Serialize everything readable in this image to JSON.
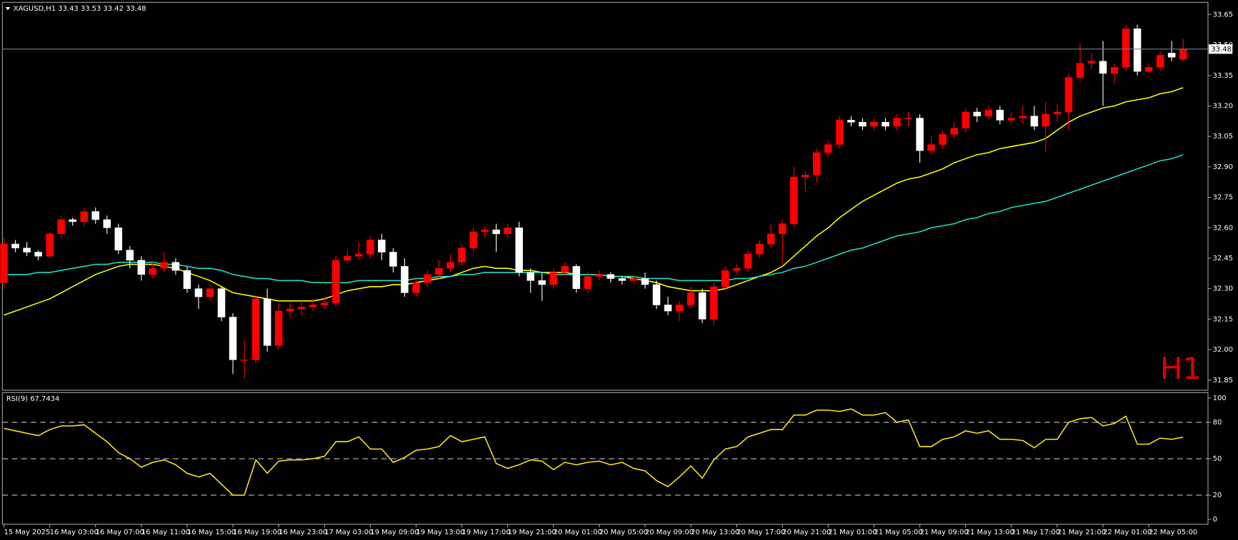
{
  "chart_data": [
    {
      "type": "candlestick",
      "title": "XAGUSD,H1  33.43 33.53 33.42 33.48",
      "annotation": "H1",
      "categories": [
        "15 May 2025",
        null,
        null,
        null,
        "16 May 03:00",
        null,
        null,
        null,
        "16 May 07:00",
        null,
        null,
        null,
        "16 May 11:00",
        null,
        null,
        null,
        "16 May 15:00",
        null,
        null,
        null,
        "16 May 19:00",
        null,
        null,
        null,
        "16 May 23:00",
        null,
        null,
        null,
        "17 May 03:00",
        null,
        null,
        null,
        "19 May 09:00",
        null,
        null,
        null,
        "19 May 13:00",
        null,
        null,
        null,
        "19 May 17:00",
        null,
        null,
        null,
        "19 May 21:00",
        null,
        null,
        null,
        "20 May 01:00",
        null,
        null,
        null,
        "20 May 05:00",
        null,
        null,
        null,
        "20 May 09:00",
        null,
        null,
        null,
        "20 May 13:00",
        null,
        null,
        null,
        "20 May 17:00",
        null,
        null,
        null,
        "20 May 21:00",
        null,
        null,
        null,
        "21 May 01:00",
        null,
        null,
        null,
        "21 May 05:00",
        null,
        null,
        null,
        "21 May 09:00",
        null,
        null,
        null,
        "21 May 13:00",
        null,
        null,
        null,
        "21 May 17:00",
        null,
        null,
        null,
        "21 May 21:00",
        null,
        null,
        null,
        "22 May 01:00",
        null,
        null,
        null,
        "22 May 05:00",
        null,
        null,
        null
      ],
      "open": [
        32.33,
        32.52,
        32.5,
        32.48,
        32.46,
        32.57,
        32.64,
        32.63,
        32.68,
        32.64,
        32.6,
        32.49,
        32.44,
        32.37,
        32.4,
        32.43,
        32.39,
        32.3,
        32.26,
        32.3,
        32.16,
        31.95,
        31.95,
        32.25,
        32.02,
        32.19,
        32.2,
        32.21,
        32.22,
        32.23,
        32.44,
        32.46,
        32.47,
        32.54,
        32.48,
        32.41,
        32.28,
        32.33,
        32.37,
        32.4,
        32.43,
        32.5,
        32.58,
        32.59,
        32.57,
        32.6,
        32.38,
        32.34,
        32.32,
        32.38,
        32.41,
        32.3,
        32.36,
        32.37,
        32.35,
        32.34,
        32.35,
        32.32,
        32.22,
        32.19,
        32.22,
        32.28,
        32.15,
        32.31,
        32.39,
        32.4,
        32.47,
        32.52,
        32.57,
        32.62,
        32.85,
        32.86,
        32.97,
        33.01,
        33.13,
        33.12,
        33.1,
        33.12,
        33.1,
        33.14,
        33.14,
        32.98,
        33.01,
        33.06,
        33.09,
        33.17,
        33.15,
        33.18,
        33.13,
        33.14,
        33.15,
        33.1,
        33.16,
        33.17,
        33.34,
        33.41,
        33.42,
        33.36,
        33.39,
        33.58,
        33.37,
        33.39,
        33.46,
        33.43
      ],
      "high": [
        32.55,
        32.54,
        32.53,
        32.49,
        32.58,
        32.66,
        32.65,
        32.7,
        32.7,
        32.66,
        32.62,
        32.51,
        32.46,
        32.44,
        32.48,
        32.45,
        32.41,
        32.32,
        32.32,
        32.31,
        32.18,
        32.05,
        32.27,
        32.3,
        32.23,
        32.23,
        32.24,
        32.25,
        32.26,
        32.46,
        32.49,
        32.53,
        32.56,
        32.57,
        32.5,
        32.45,
        32.35,
        32.39,
        32.44,
        32.47,
        32.52,
        32.6,
        32.61,
        32.62,
        32.62,
        32.63,
        32.4,
        32.38,
        32.4,
        32.43,
        32.42,
        32.38,
        32.39,
        32.38,
        32.36,
        32.37,
        32.38,
        32.34,
        32.26,
        32.24,
        32.31,
        32.3,
        32.33,
        32.41,
        32.42,
        32.49,
        32.54,
        32.62,
        32.64,
        32.9,
        32.88,
        32.99,
        33.03,
        33.15,
        33.15,
        33.14,
        33.14,
        33.14,
        33.16,
        33.17,
        33.16,
        33.05,
        33.08,
        33.12,
        33.19,
        33.19,
        33.2,
        33.2,
        33.17,
        33.2,
        33.2,
        33.22,
        33.21,
        33.36,
        33.51,
        33.46,
        33.52,
        33.41,
        33.6,
        33.6,
        33.41,
        33.47,
        33.52,
        33.53
      ],
      "low": [
        32.3,
        32.48,
        32.46,
        32.44,
        32.45,
        32.55,
        32.61,
        32.61,
        32.62,
        32.57,
        32.47,
        32.4,
        32.34,
        32.35,
        32.38,
        32.37,
        32.28,
        32.2,
        32.24,
        32.14,
        31.88,
        31.86,
        31.93,
        31.99,
        32.0,
        32.16,
        32.17,
        32.19,
        32.2,
        32.21,
        32.42,
        32.44,
        32.45,
        32.44,
        32.38,
        32.26,
        32.26,
        32.31,
        32.35,
        32.38,
        32.41,
        32.48,
        32.55,
        32.48,
        32.55,
        32.36,
        32.28,
        32.24,
        32.3,
        32.36,
        32.28,
        32.28,
        32.34,
        32.33,
        32.32,
        32.32,
        32.3,
        32.2,
        32.17,
        32.14,
        32.2,
        32.13,
        32.12,
        32.29,
        32.37,
        32.38,
        32.45,
        32.5,
        32.42,
        32.6,
        32.78,
        32.82,
        32.95,
        32.99,
        33.1,
        33.08,
        33.08,
        33.08,
        33.08,
        33.1,
        32.92,
        32.96,
        32.99,
        33.04,
        33.07,
        33.12,
        33.13,
        33.11,
        33.11,
        33.11,
        33.08,
        32.97,
        33.12,
        33.08,
        33.32,
        33.38,
        33.2,
        33.31,
        33.37,
        33.35,
        33.36,
        33.37,
        33.42,
        33.42
      ],
      "close": [
        32.52,
        32.5,
        32.48,
        32.46,
        32.57,
        32.64,
        32.63,
        32.68,
        32.64,
        32.6,
        32.49,
        32.44,
        32.37,
        32.4,
        32.43,
        32.39,
        32.3,
        32.26,
        32.3,
        32.16,
        31.95,
        31.95,
        32.25,
        32.02,
        32.19,
        32.2,
        32.21,
        32.22,
        32.23,
        32.44,
        32.46,
        32.47,
        32.54,
        32.48,
        32.41,
        32.28,
        32.33,
        32.37,
        32.4,
        32.43,
        32.5,
        32.58,
        32.59,
        32.57,
        32.6,
        32.38,
        32.34,
        32.32,
        32.38,
        32.41,
        32.3,
        32.36,
        32.37,
        32.35,
        32.34,
        32.35,
        32.32,
        32.22,
        32.19,
        32.22,
        32.28,
        32.15,
        32.31,
        32.39,
        32.4,
        32.47,
        32.52,
        32.57,
        32.62,
        32.85,
        32.86,
        32.97,
        33.01,
        33.13,
        33.12,
        33.1,
        33.12,
        33.1,
        33.14,
        33.14,
        32.98,
        33.01,
        33.06,
        33.09,
        33.17,
        33.15,
        33.18,
        33.13,
        33.14,
        33.15,
        33.1,
        33.16,
        33.17,
        33.34,
        33.41,
        33.42,
        33.36,
        33.39,
        33.58,
        33.37,
        33.39,
        33.45,
        33.44,
        33.48
      ],
      "up_color": "#ff0000",
      "down_color": "#ffffff",
      "series": [
        {
          "color": "#ffff00",
          "values": [
            32.17,
            32.19,
            32.21,
            32.23,
            32.25,
            32.28,
            32.31,
            32.34,
            32.37,
            32.39,
            32.41,
            32.42,
            32.42,
            32.42,
            32.41,
            32.4,
            32.38,
            32.36,
            32.34,
            32.31,
            32.28,
            32.27,
            32.26,
            32.25,
            32.24,
            32.24,
            32.24,
            32.24,
            32.25,
            32.27,
            32.29,
            32.3,
            32.31,
            32.31,
            32.32,
            32.32,
            32.33,
            32.34,
            32.35,
            32.36,
            32.38,
            32.4,
            32.41,
            32.4,
            32.4,
            32.39,
            32.39,
            32.38,
            32.38,
            32.38,
            32.37,
            32.37,
            32.37,
            32.36,
            32.36,
            32.35,
            32.34,
            32.33,
            32.31,
            32.3,
            32.29,
            32.29,
            32.29,
            32.3,
            32.32,
            32.34,
            32.36,
            32.38,
            32.41,
            32.46,
            32.51,
            32.56,
            32.6,
            32.65,
            32.69,
            32.73,
            32.76,
            32.79,
            32.82,
            32.84,
            32.85,
            32.87,
            32.89,
            32.92,
            32.94,
            32.96,
            32.97,
            32.99,
            33.0,
            33.01,
            33.02,
            33.04,
            33.08,
            33.12,
            33.15,
            33.17,
            33.19,
            33.2,
            33.22,
            33.23,
            33.24,
            33.26,
            33.27,
            33.29
          ]
        },
        {
          "color": "#20e0c0",
          "values": [
            32.37,
            32.37,
            32.37,
            32.38,
            32.38,
            32.39,
            32.4,
            32.41,
            32.42,
            32.42,
            32.43,
            32.43,
            32.43,
            32.43,
            32.42,
            32.42,
            32.41,
            32.4,
            32.4,
            32.39,
            32.37,
            32.36,
            32.35,
            32.35,
            32.34,
            32.34,
            32.34,
            32.33,
            32.33,
            32.33,
            32.33,
            32.34,
            32.34,
            32.34,
            32.34,
            32.34,
            32.35,
            32.35,
            32.36,
            32.36,
            32.37,
            32.37,
            32.38,
            32.38,
            32.38,
            32.38,
            32.38,
            32.38,
            32.37,
            32.37,
            32.37,
            32.37,
            32.37,
            32.36,
            32.36,
            32.36,
            32.35,
            32.35,
            32.35,
            32.34,
            32.34,
            32.34,
            32.34,
            32.34,
            32.35,
            32.35,
            32.36,
            32.37,
            32.38,
            32.4,
            32.41,
            32.43,
            32.45,
            32.47,
            32.49,
            32.5,
            32.52,
            32.54,
            32.56,
            32.57,
            32.58,
            32.6,
            32.61,
            32.62,
            32.64,
            32.65,
            32.67,
            32.68,
            32.7,
            32.71,
            32.72,
            32.73,
            32.75,
            32.77,
            32.79,
            32.81,
            32.83,
            32.85,
            32.87,
            32.89,
            32.91,
            32.93,
            32.94,
            32.96
          ]
        }
      ],
      "current_price": 33.48,
      "ylim": [
        31.8,
        33.71
      ],
      "yticks": [
        31.85,
        {
          "value": 32,
          "label": "32.00"
        },
        32.15,
        {
          "value": 32.3,
          "label": "32.30"
        },
        32.45,
        {
          "value": 32.6,
          "label": "32.60"
        },
        32.75,
        {
          "value": 32.9,
          "label": "32.90"
        },
        33.05,
        {
          "value": 33.2,
          "label": "33.20"
        },
        33.35,
        {
          "value": 33.5,
          "label": "33.50"
        },
        33.65
      ]
    },
    {
      "type": "line",
      "title": "RSI(9) 67.7434",
      "color": "#ffe81a",
      "values": [
        75,
        73,
        71,
        69,
        74,
        77,
        77,
        78,
        71,
        64,
        55,
        50,
        43,
        47,
        49,
        45,
        38,
        35,
        38,
        29,
        20,
        20,
        49,
        38,
        48,
        49,
        49,
        50,
        52,
        64,
        64,
        68,
        58,
        58,
        47,
        51,
        57,
        58,
        60,
        69,
        64,
        66,
        68,
        46,
        42,
        45,
        49,
        48,
        41,
        47,
        45,
        47,
        48,
        45,
        47,
        42,
        40,
        32,
        27,
        35,
        44,
        34,
        49,
        58,
        60,
        68,
        71,
        74,
        74,
        86,
        86,
        90,
        90,
        89,
        91,
        86,
        86,
        88,
        80,
        82,
        60,
        60,
        66,
        68,
        73,
        71,
        73,
        66,
        66,
        65,
        59,
        66,
        66,
        80,
        83,
        84,
        77,
        79,
        85,
        62,
        62,
        67,
        66,
        67.7434
      ],
      "levels": [
        20,
        50,
        80
      ],
      "ylim": [
        -4,
        104.5
      ],
      "yticks": [
        0,
        20,
        50,
        80,
        100
      ]
    }
  ]
}
